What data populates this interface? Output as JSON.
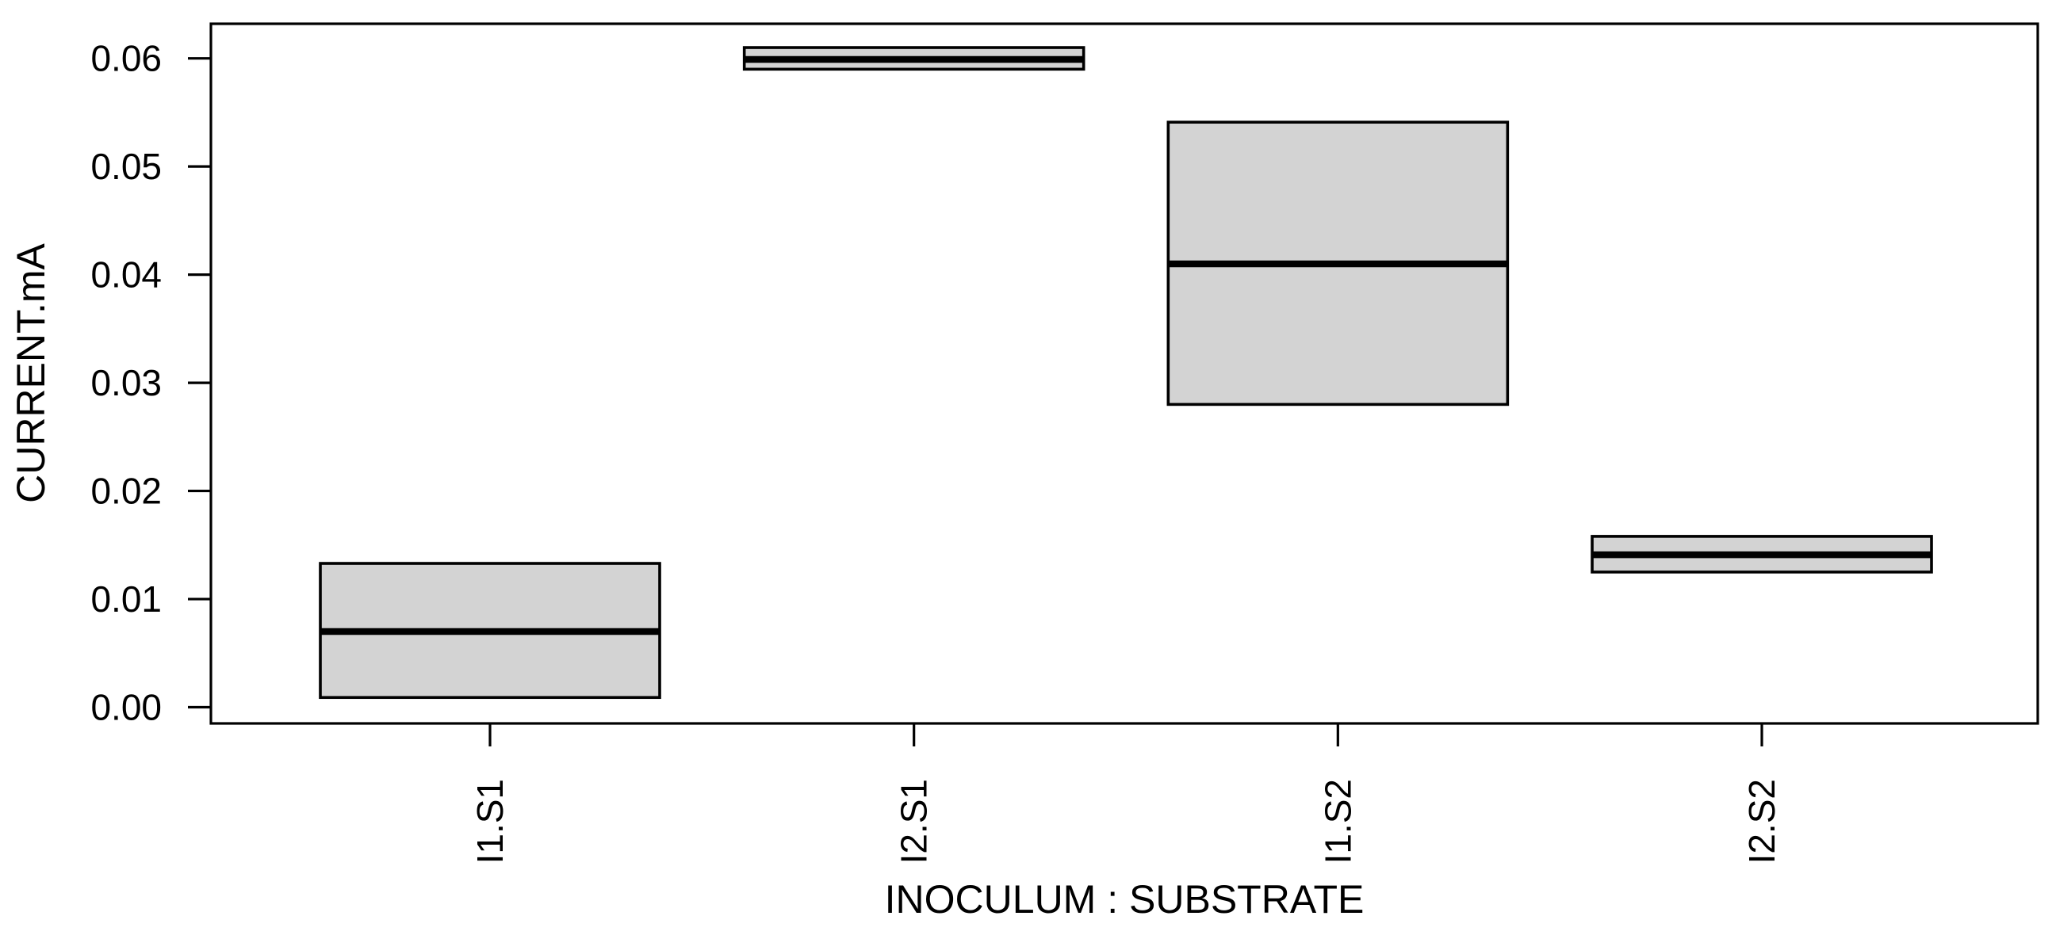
{
  "figure": {
    "background": "#ffffff"
  },
  "chart_data": {
    "type": "boxplot",
    "title": "",
    "xlabel": "INOCULUM : SUBSTRATE",
    "ylabel": "CURRENT.mA",
    "categories": [
      "I1.S1",
      "I2.S1",
      "I1.S2",
      "I2.S2"
    ],
    "boxes": [
      {
        "category": "I1.S1",
        "q1": 0.0009,
        "median": 0.007,
        "q3": 0.0133
      },
      {
        "category": "I2.S1",
        "q1": 0.059,
        "median": 0.0599,
        "q3": 0.061
      },
      {
        "category": "I1.S2",
        "q1": 0.028,
        "median": 0.041,
        "q3": 0.0541
      },
      {
        "category": "I2.S2",
        "q1": 0.0125,
        "median": 0.0141,
        "q3": 0.0158
      }
    ],
    "yticks": [
      {
        "value": 0.0,
        "label": "0.00"
      },
      {
        "value": 0.01,
        "label": "0.01"
      },
      {
        "value": 0.02,
        "label": "0.02"
      },
      {
        "value": 0.03,
        "label": "0.03"
      },
      {
        "value": 0.04,
        "label": "0.04"
      },
      {
        "value": 0.05,
        "label": "0.05"
      },
      {
        "value": 0.06,
        "label": "0.06"
      }
    ],
    "ylim": [
      -0.0015,
      0.0632
    ],
    "grid": false,
    "legend": "none",
    "whiskers": false,
    "box_fill_color": "#d3d3d3",
    "box_border_color": "#000000",
    "median_color": "#000000",
    "axis_color": "#000000"
  }
}
